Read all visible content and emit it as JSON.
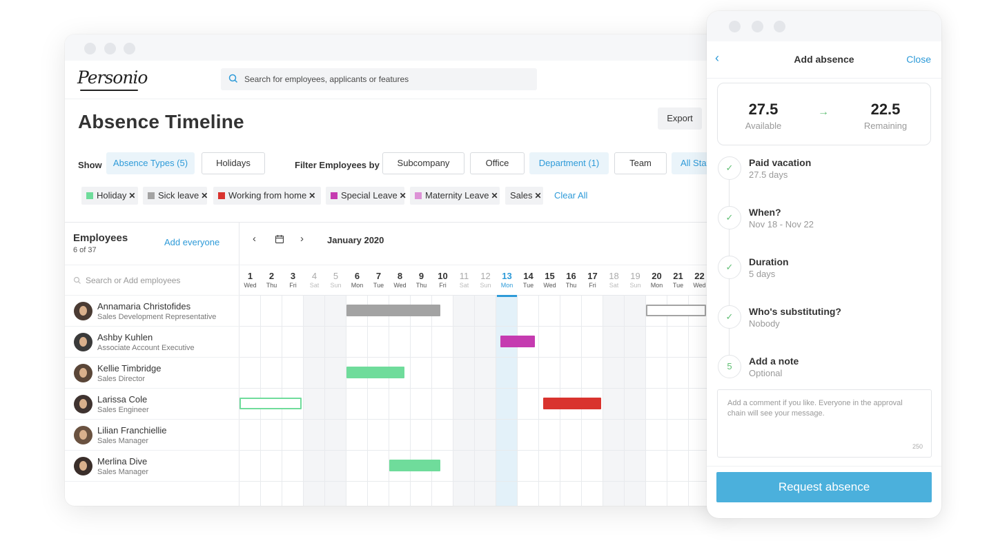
{
  "app": {
    "logo": "Personio"
  },
  "search": {
    "placeholder": "Search for employees, applicants or features"
  },
  "page": {
    "title": "Absence Timeline",
    "export_label": "Export"
  },
  "filters": {
    "show_label": "Show",
    "absence_types": "Absence Types (5)",
    "holidays": "Holidays",
    "filter_label": "Filter Employees by",
    "subcompany": "Subcompany",
    "office": "Office",
    "department": "Department (1)",
    "team": "Team",
    "all_status": "All Status"
  },
  "chips": [
    {
      "label": "Holiday",
      "color": "#6fdc9b"
    },
    {
      "label": "Sick leave",
      "color": "#a3a3a3"
    },
    {
      "label": "Working from home",
      "color": "#d9332e"
    },
    {
      "label": "Special Leave",
      "color": "#c53bb0"
    },
    {
      "label": "Maternity Leave",
      "color": "#dd92d6"
    },
    {
      "label": "Sales",
      "color": ""
    }
  ],
  "chip_remove_symbol": "✕",
  "clear_all": "Clear All",
  "employees_panel": {
    "title": "Employees",
    "count": "6 of 37",
    "add_everyone": "Add everyone",
    "search_placeholder": "Search or Add employees"
  },
  "employees": [
    {
      "name": "Annamaria Christofides",
      "role": "Sales Development Representative"
    },
    {
      "name": "Ashby Kuhlen",
      "role": "Associate Account Executive"
    },
    {
      "name": "Kellie Timbridge",
      "role": "Sales Director"
    },
    {
      "name": "Larissa Cole",
      "role": "Sales Engineer"
    },
    {
      "name": "Lilian Franchiellie",
      "role": "Sales Manager"
    },
    {
      "name": "Merlina Dive",
      "role": "Sales Manager"
    }
  ],
  "calendar": {
    "prev": "‹",
    "next": "›",
    "month": "January 2020",
    "days": [
      {
        "n": "1",
        "w": "Wed"
      },
      {
        "n": "2",
        "w": "Thu"
      },
      {
        "n": "3",
        "w": "Fri"
      },
      {
        "n": "4",
        "w": "Sat",
        "weekend": true
      },
      {
        "n": "5",
        "w": "Sun",
        "weekend": true
      },
      {
        "n": "6",
        "w": "Mon"
      },
      {
        "n": "7",
        "w": "Tue"
      },
      {
        "n": "8",
        "w": "Wed"
      },
      {
        "n": "9",
        "w": "Thu"
      },
      {
        "n": "10",
        "w": "Fri"
      },
      {
        "n": "11",
        "w": "Sat",
        "weekend": true
      },
      {
        "n": "12",
        "w": "Sun",
        "weekend": true
      },
      {
        "n": "13",
        "w": "Mon",
        "today": true
      },
      {
        "n": "14",
        "w": "Tue"
      },
      {
        "n": "15",
        "w": "Wed"
      },
      {
        "n": "16",
        "w": "Thu"
      },
      {
        "n": "17",
        "w": "Fri"
      },
      {
        "n": "18",
        "w": "Sat",
        "weekend": true
      },
      {
        "n": "19",
        "w": "Sun",
        "weekend": true
      },
      {
        "n": "20",
        "w": "Mon"
      },
      {
        "n": "21",
        "w": "Tue"
      },
      {
        "n": "22",
        "w": "Wed"
      }
    ],
    "absences": [
      {
        "row": 0,
        "start_day": 6,
        "end_day": 10.3,
        "color": "#a3a3a3",
        "style": "solid",
        "type": "Sick leave"
      },
      {
        "row": 0,
        "start_day": 20,
        "end_day": 22.7,
        "color": "#a3a3a3",
        "style": "outline",
        "type": "Sick leave"
      },
      {
        "row": 1,
        "start_day": 13.2,
        "end_day": 14.7,
        "color": "#c53bb0",
        "style": "solid",
        "type": "Special Leave"
      },
      {
        "row": 2,
        "start_day": 6,
        "end_day": 8.6,
        "color": "#6fdc9b",
        "style": "solid",
        "type": "Holiday"
      },
      {
        "row": 3,
        "start_day": 1,
        "end_day": 3.8,
        "color": "#6fdc9b",
        "style": "outline",
        "type": "Holiday"
      },
      {
        "row": 3,
        "start_day": 15.2,
        "end_day": 17.8,
        "color": "#d9332e",
        "style": "solid",
        "type": "Working from home"
      },
      {
        "row": 5,
        "start_day": 8,
        "end_day": 10.3,
        "color": "#6fdc9b",
        "style": "solid",
        "type": "Holiday"
      }
    ]
  },
  "add_absence": {
    "back": "‹",
    "title": "Add absence",
    "close": "Close",
    "available_value": "27.5",
    "available_label": "Available",
    "arrow": "→",
    "remaining_value": "22.5",
    "remaining_label": "Remaining",
    "steps": [
      {
        "marker": "✓",
        "title": "Paid vacation",
        "sub": "27.5 days"
      },
      {
        "marker": "✓",
        "title": "When?",
        "sub": "Nov 18 - Nov 22"
      },
      {
        "marker": "✓",
        "title": "Duration",
        "sub": "5 days"
      },
      {
        "marker": "✓",
        "title": "Who's substituting?",
        "sub": "Nobody"
      },
      {
        "marker": "5",
        "title": "Add a note",
        "sub": "Optional"
      }
    ],
    "note_placeholder": "Add a comment if you like. Everyone in the approval chain will see your message.",
    "note_limit": "250",
    "request_label": "Request absence"
  },
  "colors": {
    "accent": "#2d9ad8",
    "success": "#5fbf73",
    "primary_button": "#4bb0dc"
  }
}
